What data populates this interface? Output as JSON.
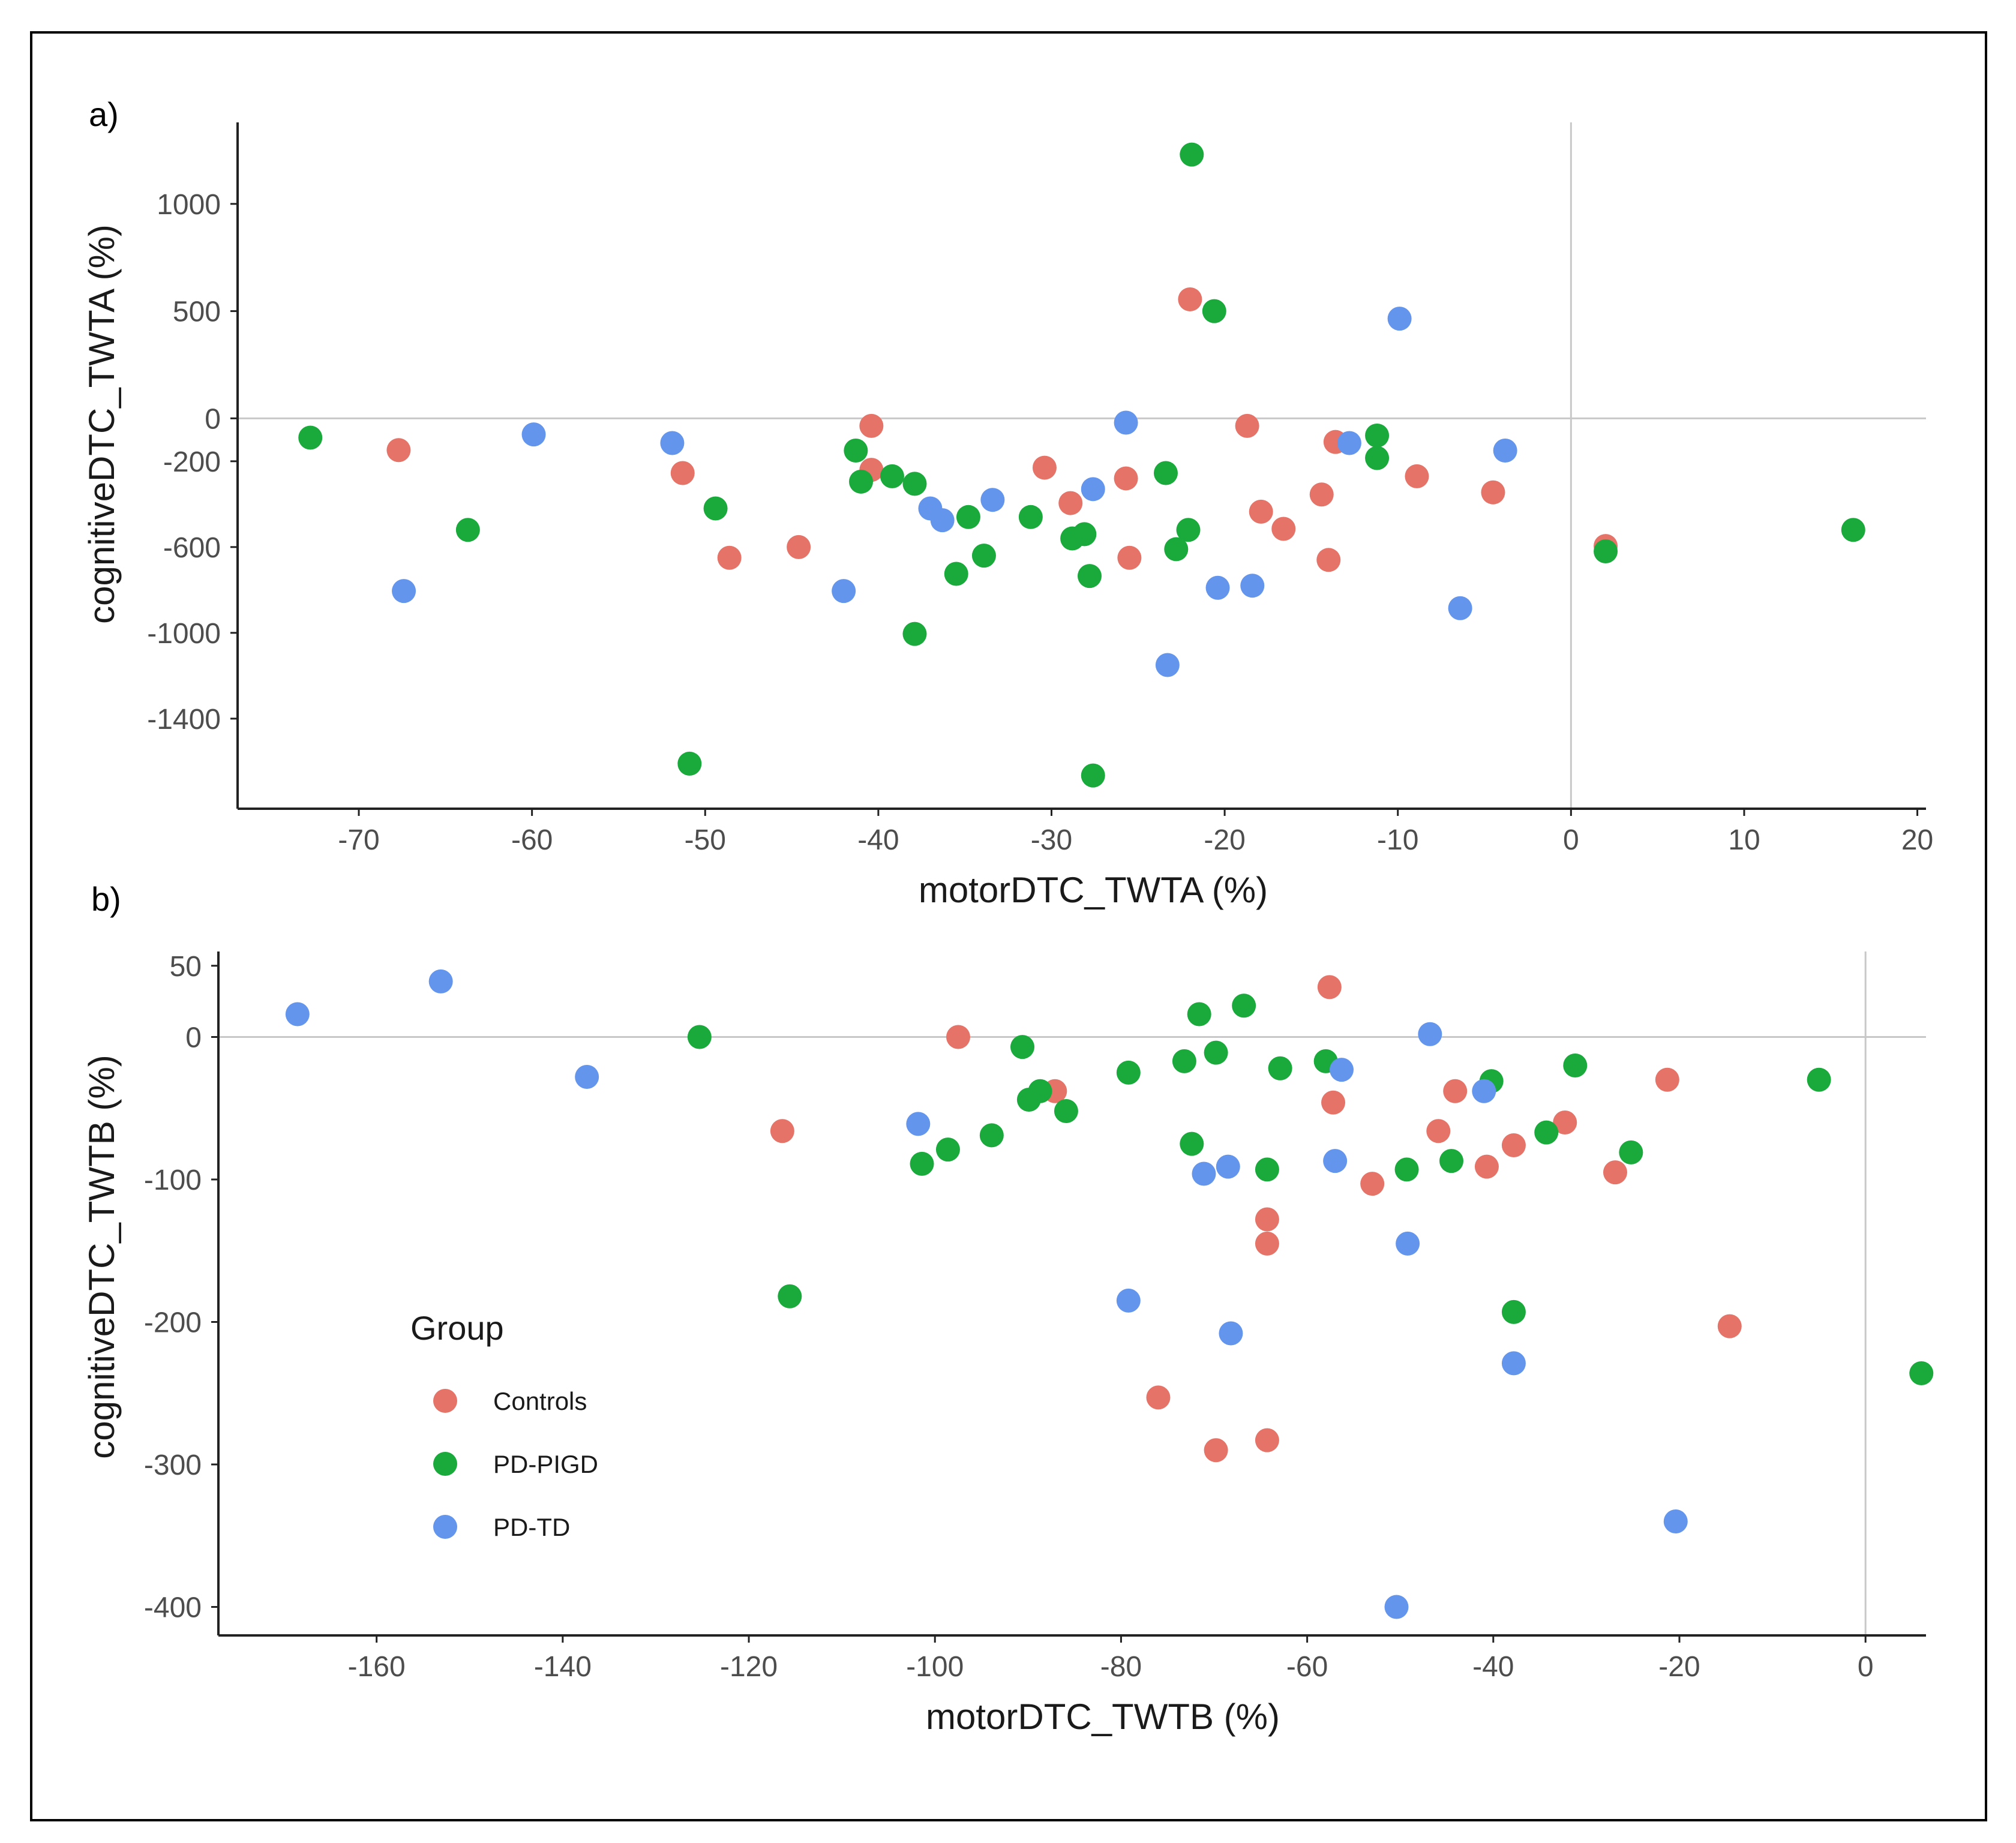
{
  "figure": {
    "border": true
  },
  "colors": {
    "Controls": "#E57368",
    "PD-PIGD": "#1AAA3C",
    "PD-TD": "#6495ED"
  },
  "legend": {
    "title": "Group",
    "entries": [
      "Controls",
      "PD-PIGD",
      "PD-TD"
    ]
  },
  "chart_data": [
    {
      "panel": "a)",
      "type": "scatter",
      "xlabel": "motorDTC_TWTA (%)",
      "ylabel": "cognitiveDTC_TWTA (%)",
      "xlim": [
        -77,
        20.5
      ],
      "ylim": [
        -1820,
        1380
      ],
      "xticks": [
        -70,
        -60,
        -50,
        -40,
        -30,
        -20,
        -10,
        0,
        10,
        20
      ],
      "yticks": [
        1000,
        500,
        0,
        -200,
        -600,
        -1000,
        -1400
      ],
      "ytick_labels": [
        "1000",
        "500",
        "0",
        "-200",
        "-600",
        "-1000",
        "-1400"
      ],
      "hline": 0,
      "vline": 0,
      "series": [
        {
          "name": "Controls",
          "points": [
            [
              -67.7,
              -148
            ],
            [
              -51.3,
              -255
            ],
            [
              -48.6,
              -650
            ],
            [
              -44.6,
              -600
            ],
            [
              -40.4,
              -35
            ],
            [
              -40.4,
              -240
            ],
            [
              -30.4,
              -230
            ],
            [
              -28.9,
              -395
            ],
            [
              -25.7,
              -280
            ],
            [
              -25.5,
              -650
            ],
            [
              -22.0,
              555
            ],
            [
              -18.7,
              -35
            ],
            [
              -17.9,
              -435
            ],
            [
              -16.6,
              -515
            ],
            [
              -14.4,
              -355
            ],
            [
              -14.0,
              -660
            ],
            [
              -13.6,
              -110
            ],
            [
              -8.9,
              -270
            ],
            [
              -4.5,
              -345
            ],
            [
              2.0,
              -595
            ]
          ]
        },
        {
          "name": "PD-PIGD",
          "points": [
            [
              -72.8,
              -90
            ],
            [
              -63.7,
              -520
            ],
            [
              -50.9,
              -1610
            ],
            [
              -49.4,
              -420
            ],
            [
              -41.3,
              -150
            ],
            [
              -41.0,
              -295
            ],
            [
              -39.2,
              -270
            ],
            [
              -37.9,
              -305
            ],
            [
              -37.9,
              -1005
            ],
            [
              -35.5,
              -725
            ],
            [
              -34.8,
              -460
            ],
            [
              -33.9,
              -640
            ],
            [
              -31.2,
              -460
            ],
            [
              -28.8,
              -560
            ],
            [
              -28.1,
              -540
            ],
            [
              -27.8,
              -735
            ],
            [
              -27.6,
              -1665
            ],
            [
              -23.4,
              -255
            ],
            [
              -22.8,
              -610
            ],
            [
              -22.1,
              -520
            ],
            [
              -21.9,
              1230
            ],
            [
              -20.6,
              500
            ],
            [
              -11.2,
              -80
            ],
            [
              -11.2,
              -185
            ],
            [
              2.0,
              -620
            ],
            [
              16.3,
              -520
            ]
          ]
        },
        {
          "name": "PD-TD",
          "points": [
            [
              -67.4,
              -805
            ],
            [
              -59.9,
              -75
            ],
            [
              -51.9,
              -115
            ],
            [
              -42.0,
              -805
            ],
            [
              -37.0,
              -420
            ],
            [
              -36.3,
              -475
            ],
            [
              -33.4,
              -380
            ],
            [
              -27.6,
              -330
            ],
            [
              -25.7,
              -20
            ],
            [
              -23.3,
              -1150
            ],
            [
              -20.4,
              -790
            ],
            [
              -18.4,
              -780
            ],
            [
              -12.8,
              -115
            ],
            [
              -9.9,
              465
            ],
            [
              -6.4,
              -885
            ],
            [
              -3.8,
              -150
            ]
          ]
        }
      ]
    },
    {
      "panel": "b)",
      "type": "scatter",
      "xlabel": "motorDTC_TWTB (%)",
      "ylabel": "cognitiveDTC_TWTB (%)",
      "xlim": [
        -177,
        6.5
      ],
      "ylim": [
        -420,
        60
      ],
      "xticks": [
        -160,
        -140,
        -120,
        -100,
        -80,
        -60,
        -40,
        -20,
        0
      ],
      "yticks": [
        50,
        0,
        -100,
        -200,
        -300,
        -400
      ],
      "ytick_labels": [
        "50",
        "0",
        "-100",
        "-200",
        "-300",
        "-400"
      ],
      "hline": 0,
      "vline": 0,
      "series": [
        {
          "name": "Controls",
          "points": [
            [
              -116.4,
              -66
            ],
            [
              -97.5,
              0
            ],
            [
              -87.1,
              -38
            ],
            [
              -76.0,
              -253
            ],
            [
              -69.8,
              -290
            ],
            [
              -64.3,
              -128
            ],
            [
              -64.3,
              -145
            ],
            [
              -64.3,
              -283
            ],
            [
              -57.6,
              35
            ],
            [
              -57.2,
              -46
            ],
            [
              -53.0,
              -103
            ],
            [
              -45.9,
              -66
            ],
            [
              -44.1,
              -38
            ],
            [
              -40.7,
              -91
            ],
            [
              -37.8,
              -76
            ],
            [
              -32.3,
              -60
            ],
            [
              -26.9,
              -95
            ],
            [
              -21.3,
              -30
            ],
            [
              -14.6,
              -203
            ]
          ]
        },
        {
          "name": "PD-PIGD",
          "points": [
            [
              -125.3,
              0
            ],
            [
              -115.6,
              -182
            ],
            [
              -101.4,
              -89
            ],
            [
              -98.6,
              -79
            ],
            [
              -93.9,
              -69
            ],
            [
              -90.6,
              -7
            ],
            [
              -89.9,
              -44
            ],
            [
              -88.7,
              -38
            ],
            [
              -85.9,
              -52
            ],
            [
              -79.2,
              -25
            ],
            [
              -73.2,
              -17
            ],
            [
              -72.4,
              -75
            ],
            [
              -71.6,
              16
            ],
            [
              -69.8,
              -11
            ],
            [
              -66.8,
              22
            ],
            [
              -64.3,
              -93
            ],
            [
              -62.9,
              -22
            ],
            [
              -58.0,
              -17
            ],
            [
              -49.3,
              -93
            ],
            [
              -44.5,
              -87
            ],
            [
              -40.2,
              -31
            ],
            [
              -37.8,
              -193
            ],
            [
              -34.3,
              -67
            ],
            [
              -31.2,
              -20
            ],
            [
              -25.2,
              -81
            ],
            [
              -5.0,
              -30
            ],
            [
              6.0,
              -236
            ]
          ]
        },
        {
          "name": "PD-TD",
          "points": [
            [
              -168.5,
              16
            ],
            [
              -153.1,
              39
            ],
            [
              -137.4,
              -28
            ],
            [
              -101.8,
              -61
            ],
            [
              -79.2,
              -185
            ],
            [
              -71.1,
              -96
            ],
            [
              -68.5,
              -91
            ],
            [
              -68.2,
              -208
            ],
            [
              -57.0,
              -87
            ],
            [
              -56.3,
              -23
            ],
            [
              -50.4,
              -400
            ],
            [
              -49.2,
              -145
            ],
            [
              -46.8,
              2
            ],
            [
              -41.0,
              -38
            ],
            [
              -37.8,
              -229
            ],
            [
              -20.4,
              -340
            ]
          ]
        }
      ]
    }
  ]
}
